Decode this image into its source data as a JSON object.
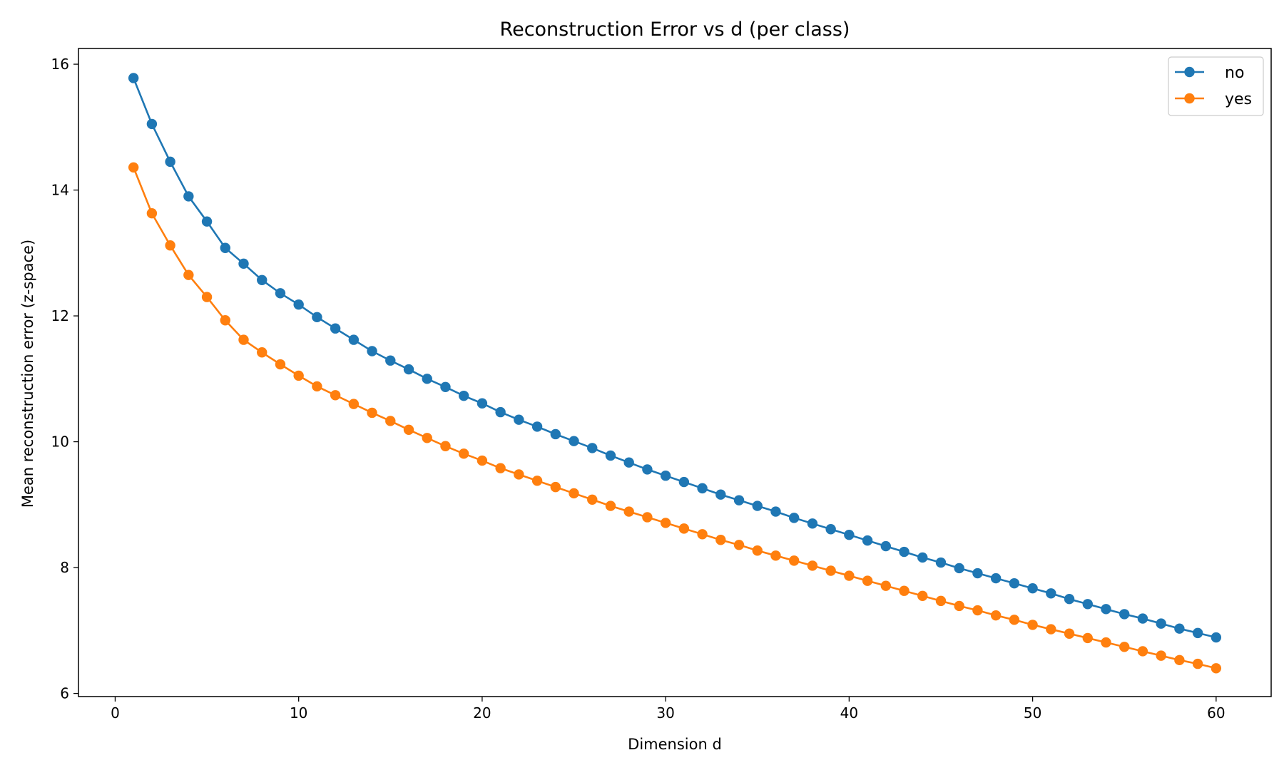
{
  "chart_data": {
    "type": "line",
    "title": "Reconstruction Error vs d (per class)",
    "xlabel": "Dimension d",
    "ylabel": "Mean reconstruction error (z-space)",
    "xlim": [
      -2,
      63
    ],
    "ylim": [
      5.95,
      16.25
    ],
    "xticks": [
      0,
      10,
      20,
      30,
      40,
      50,
      60
    ],
    "yticks": [
      6,
      8,
      10,
      12,
      14,
      16
    ],
    "grid": false,
    "legend_position": "top-right",
    "x": [
      1,
      2,
      3,
      4,
      5,
      6,
      7,
      8,
      9,
      10,
      11,
      12,
      13,
      14,
      15,
      16,
      17,
      18,
      19,
      20,
      21,
      22,
      23,
      24,
      25,
      26,
      27,
      28,
      29,
      30,
      31,
      32,
      33,
      34,
      35,
      36,
      37,
      38,
      39,
      40,
      41,
      42,
      43,
      44,
      45,
      46,
      47,
      48,
      49,
      50,
      51,
      52,
      53,
      54,
      55,
      56,
      57,
      58,
      59,
      60
    ],
    "series": [
      {
        "name": "no",
        "color": "#1f77b4",
        "values": [
          15.78,
          15.05,
          14.45,
          13.9,
          13.5,
          13.08,
          12.83,
          12.57,
          12.36,
          12.18,
          11.98,
          11.8,
          11.62,
          11.44,
          11.29,
          11.15,
          11.0,
          10.87,
          10.73,
          10.61,
          10.47,
          10.35,
          10.24,
          10.12,
          10.01,
          9.9,
          9.78,
          9.67,
          9.56,
          9.46,
          9.36,
          9.26,
          9.16,
          9.07,
          8.98,
          8.89,
          8.79,
          8.7,
          8.61,
          8.52,
          8.43,
          8.34,
          8.25,
          8.16,
          8.08,
          7.99,
          7.91,
          7.83,
          7.75,
          7.67,
          7.59,
          7.5,
          7.42,
          7.34,
          7.26,
          7.19,
          7.11,
          7.03,
          6.96,
          6.89
        ]
      },
      {
        "name": "yes",
        "color": "#ff7f0e",
        "values": [
          14.36,
          13.63,
          13.12,
          12.65,
          12.3,
          11.93,
          11.62,
          11.42,
          11.23,
          11.05,
          10.88,
          10.74,
          10.6,
          10.46,
          10.33,
          10.19,
          10.06,
          9.93,
          9.81,
          9.7,
          9.58,
          9.48,
          9.38,
          9.28,
          9.18,
          9.08,
          8.98,
          8.89,
          8.8,
          8.71,
          8.62,
          8.53,
          8.44,
          8.36,
          8.27,
          8.19,
          8.11,
          8.03,
          7.95,
          7.87,
          7.79,
          7.71,
          7.63,
          7.55,
          7.47,
          7.39,
          7.32,
          7.24,
          7.17,
          7.09,
          7.02,
          6.95,
          6.88,
          6.81,
          6.74,
          6.67,
          6.6,
          6.53,
          6.47,
          6.4
        ]
      }
    ]
  }
}
